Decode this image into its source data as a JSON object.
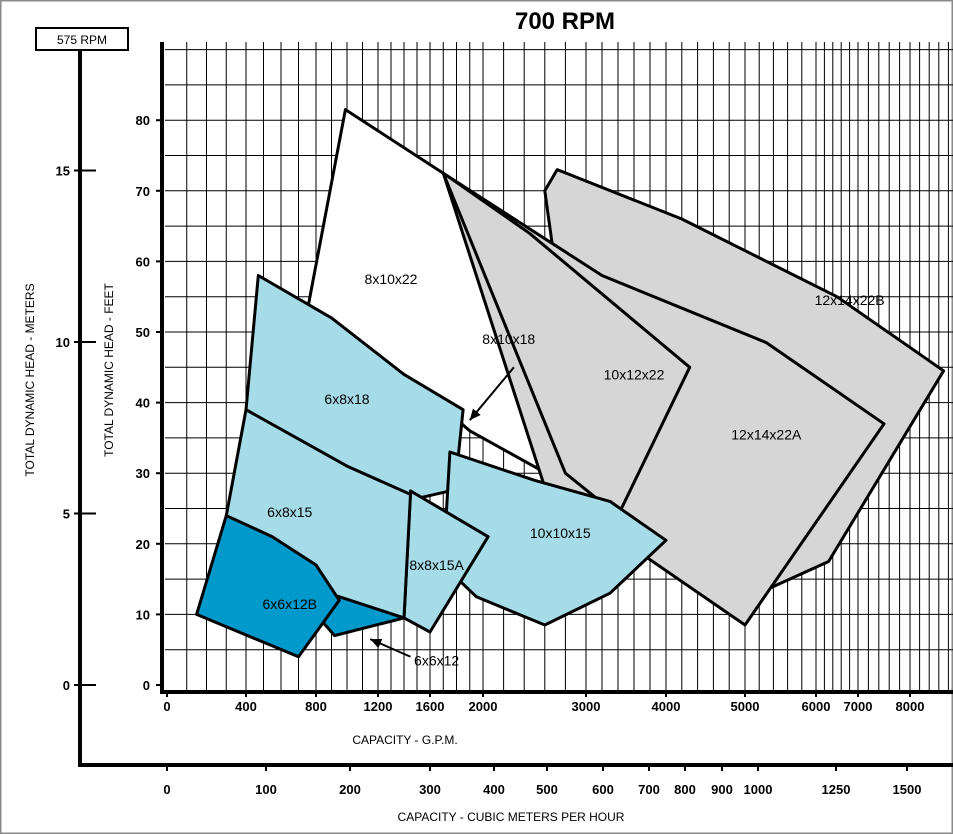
{
  "chart_data": {
    "type": "area",
    "title": "700 RPM",
    "corner_label": "575 RPM",
    "xlabel": "CAPACITY - G.P.M.",
    "x2label": "CAPACITY - CUBIC METERS PER HOUR",
    "ylabel": "TOTAL DYNAMIC HEAD - FEET",
    "y2label": "TOTAL DYNAMIC HEAD - METERS",
    "x_scale": "log",
    "x_ticks": [
      {
        "value": 0,
        "label": "0"
      },
      {
        "value": 400,
        "label": "400"
      },
      {
        "value": 800,
        "label": "800"
      },
      {
        "value": 1200,
        "label": "1200"
      },
      {
        "value": 1600,
        "label": "1600"
      },
      {
        "value": 2000,
        "label": "2000"
      },
      {
        "value": 3000,
        "label": "3000"
      },
      {
        "value": 4000,
        "label": "4000"
      },
      {
        "value": 5000,
        "label": "5000"
      },
      {
        "value": 6000,
        "label": "6000"
      },
      {
        "value": 7000,
        "label": "7000"
      },
      {
        "value": 8000,
        "label": "8000"
      }
    ],
    "x2_ticks": [
      {
        "value": 0,
        "label": "0"
      },
      {
        "value": 100,
        "label": "100"
      },
      {
        "value": 200,
        "label": "200"
      },
      {
        "value": 300,
        "label": "300"
      },
      {
        "value": 400,
        "label": "400"
      },
      {
        "value": 500,
        "label": "500"
      },
      {
        "value": 600,
        "label": "600"
      },
      {
        "value": 700,
        "label": "700"
      },
      {
        "value": 800,
        "label": "800"
      },
      {
        "value": 900,
        "label": "900"
      },
      {
        "value": 1000,
        "label": "1000"
      },
      {
        "value": 1250,
        "label": "1250"
      },
      {
        "value": 1500,
        "label": "1500"
      }
    ],
    "y_ticks": [
      0,
      10,
      20,
      30,
      40,
      50,
      60,
      70,
      80
    ],
    "y2_ticks": [
      {
        "value": 0,
        "label": "0"
      },
      {
        "value": 5,
        "label": "5"
      },
      {
        "value": 10,
        "label": "10"
      },
      {
        "value": 15,
        "label": "15"
      }
    ],
    "ylim": [
      0,
      90
    ],
    "grid": true,
    "colors": {
      "light": "#a6dbe8",
      "dark": "#0099cc",
      "gray": "#d6d6d6",
      "white": "#ffffff"
    },
    "regions": [
      {
        "name": "8x10x22",
        "fill": "white",
        "points": [
          [
            990,
            81.5
          ],
          [
            1700,
            72.5
          ],
          [
            2300,
            64
          ],
          [
            3400,
            48
          ],
          [
            4600,
            45.5
          ],
          [
            2800,
            28.5
          ],
          [
            1900,
            36
          ],
          [
            1400,
            44
          ],
          [
            750,
            53
          ]
        ]
      },
      {
        "name": "12x14x22B",
        "fill": "gray",
        "points": [
          [
            2720,
            73
          ],
          [
            4200,
            66
          ],
          [
            6500,
            55
          ],
          [
            8700,
            44.5
          ],
          [
            6300,
            17.5
          ],
          [
            5300,
            13.5
          ],
          [
            3000,
            28
          ],
          [
            2600,
            70
          ]
        ]
      },
      {
        "name": "12x14x22A",
        "fill": "gray",
        "points": [
          [
            1700,
            72.5
          ],
          [
            3200,
            58
          ],
          [
            5300,
            48.5
          ],
          [
            7500,
            37
          ],
          [
            5000,
            8.5
          ],
          [
            2600,
            28
          ]
        ]
      },
      {
        "name": "10x12x22",
        "fill": "gray",
        "points": [
          [
            1700,
            72.5
          ],
          [
            2450,
            64
          ],
          [
            4300,
            45
          ],
          [
            3400,
            24
          ],
          [
            2800,
            30
          ]
        ]
      },
      {
        "name": "6x8x18",
        "fill": "light",
        "points": [
          [
            470,
            58
          ],
          [
            900,
            52
          ],
          [
            1400,
            44
          ],
          [
            1850,
            39
          ],
          [
            1800,
            30
          ],
          [
            1750,
            27.5
          ],
          [
            1400,
            26
          ],
          [
            1100,
            29
          ],
          [
            750,
            34
          ],
          [
            400,
            39
          ]
        ]
      },
      {
        "name": "10x10x15",
        "fill": "light",
        "points": [
          [
            1750,
            33
          ],
          [
            2500,
            29
          ],
          [
            3300,
            26
          ],
          [
            4000,
            20.5
          ],
          [
            3300,
            13
          ],
          [
            2600,
            8.5
          ],
          [
            1950,
            12.5
          ],
          [
            1700,
            17
          ]
        ]
      },
      {
        "name": "8x8x15A",
        "fill": "light",
        "points": [
          [
            1450,
            27.5
          ],
          [
            2050,
            21
          ],
          [
            1600,
            7.5
          ],
          [
            1400,
            9.5
          ]
        ]
      },
      {
        "name": "6x8x15",
        "fill": "light",
        "points": [
          [
            400,
            39
          ],
          [
            1000,
            31
          ],
          [
            1450,
            27
          ],
          [
            1400,
            9.5
          ],
          [
            700,
            14
          ],
          [
            300,
            24
          ]
        ]
      },
      {
        "name": "6x6x12",
        "fill": "dark",
        "points": [
          [
            880,
            13
          ],
          [
            1400,
            9.5
          ],
          [
            920,
            7
          ],
          [
            800,
            10
          ]
        ]
      },
      {
        "name": "6x6x12B",
        "fill": "dark",
        "points": [
          [
            300,
            24
          ],
          [
            550,
            21
          ],
          [
            800,
            17
          ],
          [
            950,
            12
          ],
          [
            700,
            4
          ],
          [
            150,
            10
          ]
        ]
      }
    ],
    "labels": [
      {
        "text": "8x10x22",
        "x": 1300,
        "y": 57.5
      },
      {
        "text": "12x14x22B",
        "x": 6800,
        "y": 54.5
      },
      {
        "text": "8x10x18",
        "x": 2250,
        "y": 49
      },
      {
        "text": "10x12x22",
        "x": 3600,
        "y": 44
      },
      {
        "text": "12x14x22A",
        "x": 5300,
        "y": 35.5
      },
      {
        "text": "6x8x18",
        "x": 1000,
        "y": 40.5
      },
      {
        "text": "6x8x15",
        "x": 650,
        "y": 24.5
      },
      {
        "text": "10x10x15",
        "x": 2750,
        "y": 21.5
      },
      {
        "text": "8x8x15A",
        "x": 1650,
        "y": 17
      },
      {
        "text": "6x6x12B",
        "x": 650,
        "y": 11.5
      },
      {
        "text": "6x6x12",
        "x": 1650,
        "y": 3.5
      }
    ],
    "pointers": [
      {
        "from": [
          2300,
          45
        ],
        "to": [
          1900,
          37.5
        ]
      },
      {
        "from": [
          1450,
          4
        ],
        "to": [
          1150,
          6.5
        ]
      }
    ]
  }
}
